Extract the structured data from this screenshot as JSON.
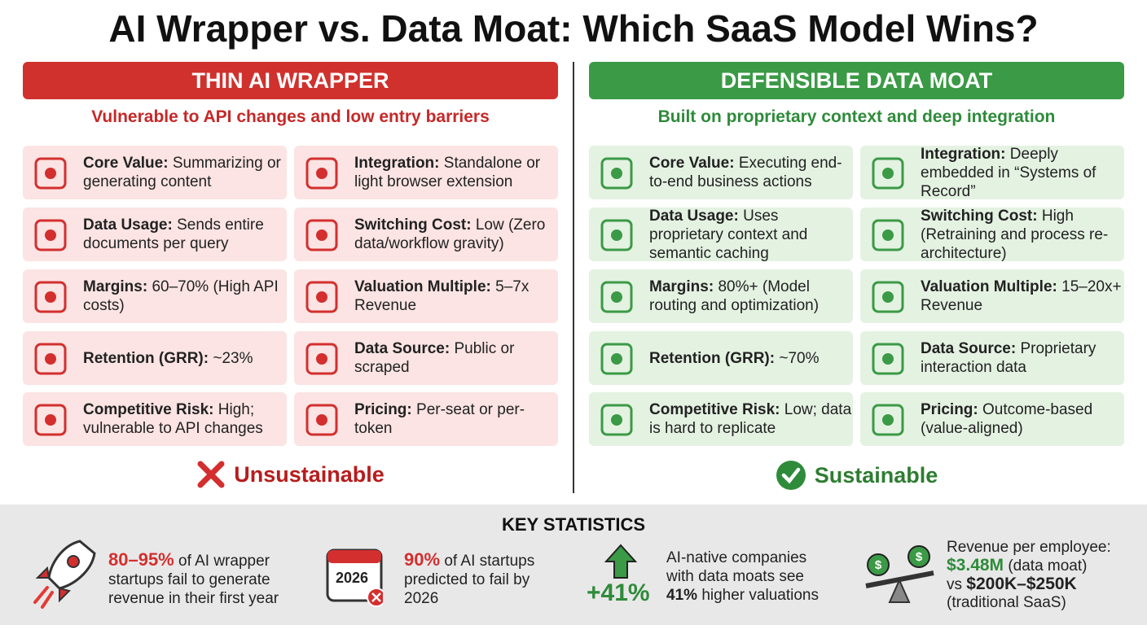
{
  "title": "AI Wrapper vs. Data Moat: Which SaaS Model Wins?",
  "left": {
    "header": "THIN AI WRAPPER",
    "subtitle": "Vulnerable to API changes and low entry barriers",
    "cards": [
      {
        "label": "Core Value:",
        "text": "Summarizing or generating content"
      },
      {
        "label": "Integration:",
        "text": "Standalone or light browser extension"
      },
      {
        "label": "Data Usage:",
        "text": "Sends entire documents per query"
      },
      {
        "label": "Switching Cost:",
        "text": "Low (Zero data/workflow gravity)"
      },
      {
        "label": "Margins:",
        "text": "60–70% (High API costs)"
      },
      {
        "label": "Valuation Multiple:",
        "text": "5–7x Revenue"
      },
      {
        "label": "Retention (GRR):",
        "text": "~23%"
      },
      {
        "label": "Data Source:",
        "text": "Public or scraped"
      },
      {
        "label": "Competitive Risk:",
        "text": "High; vulnerable to API changes"
      },
      {
        "label": "Pricing:",
        "text": "Per-seat or per-token"
      }
    ],
    "verdict": "Unsustainable"
  },
  "right": {
    "header": "DEFENSIBLE DATA MOAT",
    "subtitle": "Built on proprietary context and deep integration",
    "cards": [
      {
        "label": "Core Value:",
        "text": "Executing end-to-end business actions"
      },
      {
        "label": "Integration:",
        "text": "Deeply embedded in “Systems of Record”"
      },
      {
        "label": "Data Usage:",
        "text": "Uses proprietary context and semantic caching"
      },
      {
        "label": "Switching Cost:",
        "text": "High (Retraining and process re-architecture)"
      },
      {
        "label": "Margins:",
        "text": "80%+ (Model routing and optimization)"
      },
      {
        "label": "Valuation Multiple:",
        "text": "15–20x+ Revenue"
      },
      {
        "label": "Retention (GRR):",
        "text": "~70%"
      },
      {
        "label": "Data Source:",
        "text": "Proprietary interaction data"
      },
      {
        "label": "Competitive Risk:",
        "text": "Low; data is hard to replicate"
      },
      {
        "label": "Pricing:",
        "text": "Outcome-based (value-aligned)"
      }
    ],
    "verdict": "Sustainable"
  },
  "stats": {
    "title": "KEY STATISTICS",
    "items": [
      {
        "highlight": "80–95%",
        "text": "of AI wrapper startups fail to generate revenue in their first year"
      },
      {
        "icon_label": "2026",
        "highlight": "90%",
        "text": "of AI startups predicted to fail by 2026"
      },
      {
        "big": "+41%",
        "text": "AI-native companies with data moats see",
        "highlight": "41%",
        "text_end": "higher valuations"
      },
      {
        "text": "Revenue per employee:",
        "highlight": "$3.48M",
        "note": "(data moat)",
        "vs": "vs",
        "highlight2": "$200K–$250K",
        "note2": "(traditional SaaS)"
      }
    ]
  }
}
